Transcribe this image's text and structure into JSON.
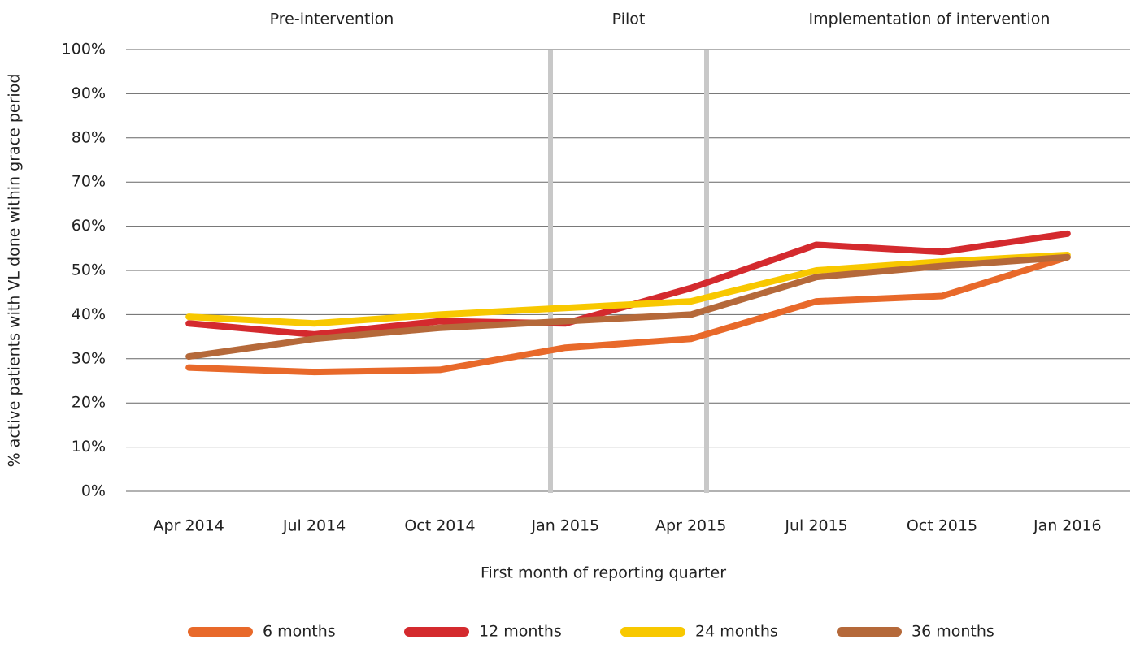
{
  "chart_data": {
    "type": "line",
    "annotations": [
      "Pre-intervention",
      "Pilot",
      "Implementation of intervention"
    ],
    "y_label": "% active patients with VL done within grace period",
    "x_label": "First month of reporting quarter",
    "categories": [
      "Apr 2014",
      "Jul 2014",
      "Oct 2014",
      "Jan 2015",
      "Apr 2015",
      "Jul 2015",
      "Oct 2015",
      "Jan 2016"
    ],
    "series": [
      {
        "name": "6 months",
        "color": "#e8692a",
        "values": [
          28,
          27,
          27.5,
          32.5,
          34.5,
          43,
          44.2,
          53
        ]
      },
      {
        "name": "12 months",
        "color": "#d42a2e",
        "values": [
          38,
          35.5,
          38.5,
          38,
          46,
          55.8,
          54.2,
          58.3
        ]
      },
      {
        "name": "24 months",
        "color": "#f8c800",
        "values": [
          39.5,
          38,
          40,
          41.5,
          43,
          50,
          52,
          53.5
        ]
      },
      {
        "name": "36 months",
        "color": "#b5693a",
        "values": [
          30.5,
          34.5,
          37,
          38.5,
          40,
          48.5,
          51,
          53
        ]
      }
    ],
    "ylim": [
      0,
      100
    ],
    "yticks": [
      {
        "value": 0,
        "label": "0%"
      },
      {
        "value": 10,
        "label": "10%"
      },
      {
        "value": 20,
        "label": "20%"
      },
      {
        "value": 30,
        "label": "30%"
      },
      {
        "value": 40,
        "label": "40%"
      },
      {
        "value": 50,
        "label": "50%"
      },
      {
        "value": 60,
        "label": "60%"
      },
      {
        "value": 70,
        "label": "70%"
      },
      {
        "value": 80,
        "label": "80%"
      },
      {
        "value": 90,
        "label": "90%"
      },
      {
        "value": 100,
        "label": "100%"
      }
    ],
    "grid": true,
    "legend": "bottom"
  }
}
